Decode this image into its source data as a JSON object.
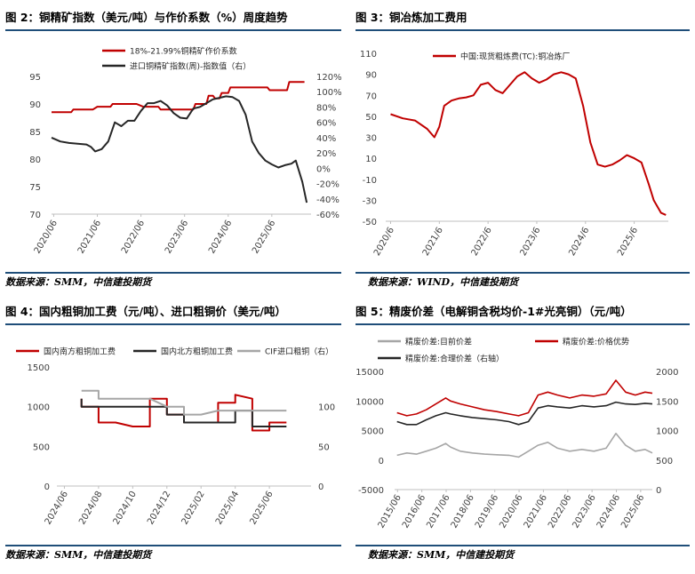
{
  "figures": {
    "fig2": {
      "title": "图 2：铜精矿指数（美元/吨）与作价系数（%）周度趋势"
    },
    "fig3": {
      "title": "图 3：铜冶炼加工费用"
    },
    "fig4": {
      "title": "图 4：国内粗铜加工费（元/吨）、进口粗铜价（美元/吨）"
    },
    "fig5": {
      "title": "图 5：精废价差（电解铜含税均价-1#光亮铜）（元/吨）"
    }
  },
  "sources": {
    "top_left": "数据来源：SMM，中信建投期货",
    "top_right": "数据来源：WIND，中信建投期货",
    "bottom_left": "数据来源：SMM，中信建投期货",
    "bottom_right": "数据来源：SMM，中信建投期货"
  },
  "chart_data": [
    {
      "id": "fig2",
      "type": "line",
      "x_ticks": [
        "2020/06",
        "2021/06",
        "2022/06",
        "2023/06",
        "2024/06",
        "2025/06"
      ],
      "y_left_ticks": [
        "70",
        "75",
        "80",
        "85",
        "90",
        "95"
      ],
      "y_right_ticks": [
        "-60%",
        "-40%",
        "-20%",
        "0%",
        "20%",
        "40%",
        "60%",
        "80%",
        "100%",
        "120%"
      ],
      "ylim_left": [
        70,
        95
      ],
      "ylim_right": [
        -60,
        120
      ],
      "legend_position": "top-center",
      "colors": {
        "s1": "#c00000",
        "s2": "#262626"
      },
      "series": [
        {
          "name": "18%-21.99%铜精矿作价系数",
          "axis": "left",
          "x": [
            2020.45,
            2020.9,
            2020.95,
            2021.4,
            2021.5,
            2021.8,
            2021.85,
            2022.4,
            2022.55,
            2022.9,
            2022.95,
            2023.7,
            2023.75,
            2024.0,
            2024.05,
            2024.15,
            2024.2,
            2024.3,
            2024.35,
            2024.5,
            2024.55,
            2025.4,
            2025.45,
            2025.85,
            2025.9,
            2026.15,
            2026.25
          ],
          "values": [
            88.5,
            88.5,
            89.0,
            89.0,
            89.5,
            89.5,
            90.0,
            90.0,
            89.5,
            89.5,
            89.0,
            89.0,
            90.0,
            90.0,
            91.5,
            91.5,
            91.0,
            91.0,
            92.0,
            92.0,
            93.0,
            93.0,
            92.5,
            92.5,
            94.0,
            94.0,
            94.0
          ]
        },
        {
          "name": "进口铜精矿指数(周)-指数值（右）",
          "axis": "right",
          "x": [
            2020.45,
            2020.65,
            2020.85,
            2021.05,
            2021.25,
            2021.35,
            2021.45,
            2021.6,
            2021.75,
            2021.9,
            2022.05,
            2022.2,
            2022.35,
            2022.5,
            2022.65,
            2022.8,
            2022.95,
            2023.1,
            2023.25,
            2023.4,
            2023.55,
            2023.7,
            2023.85,
            2024.0,
            2024.15,
            2024.3,
            2024.45,
            2024.6,
            2024.75,
            2024.9,
            2025.05,
            2025.2,
            2025.35,
            2025.5,
            2025.65,
            2025.8,
            2025.95,
            2026.05,
            2026.2,
            2026.3
          ],
          "values": [
            40,
            35,
            33,
            32,
            31,
            28,
            22,
            25,
            35,
            60,
            55,
            62,
            62,
            75,
            85,
            85,
            88,
            82,
            72,
            66,
            65,
            78,
            80,
            85,
            90,
            92,
            94,
            93,
            88,
            70,
            35,
            20,
            10,
            5,
            1,
            4,
            6,
            10,
            -18,
            -45
          ]
        }
      ]
    },
    {
      "id": "fig3",
      "type": "line",
      "x_ticks": [
        "2020/6",
        "2021/6",
        "2022/6",
        "2023/6",
        "2024/6",
        "2025/6"
      ],
      "y_ticks": [
        "-50",
        "-30",
        "-10",
        "10",
        "30",
        "50",
        "70",
        "90",
        "110"
      ],
      "ylim": [
        -50,
        110
      ],
      "legend_position": "top-left",
      "colors": {
        "s1": "#c00000"
      },
      "series": [
        {
          "name": "中国:现货粗炼费(TC):铜冶炼厂",
          "x": [
            2020.5,
            2020.75,
            2021.0,
            2021.25,
            2021.4,
            2021.5,
            2021.6,
            2021.75,
            2021.9,
            2022.05,
            2022.2,
            2022.35,
            2022.5,
            2022.65,
            2022.8,
            2022.95,
            2023.1,
            2023.25,
            2023.4,
            2023.55,
            2023.7,
            2023.85,
            2024.0,
            2024.15,
            2024.3,
            2024.45,
            2024.6,
            2024.75,
            2024.9,
            2025.05,
            2025.2,
            2025.35,
            2025.5,
            2025.65,
            2025.8,
            2025.9,
            2026.05,
            2026.15
          ],
          "values": [
            52,
            48,
            46,
            38,
            30,
            40,
            60,
            65,
            67,
            68,
            70,
            80,
            82,
            75,
            72,
            80,
            88,
            92,
            86,
            82,
            85,
            90,
            92,
            90,
            86,
            60,
            25,
            4,
            2,
            4,
            8,
            13,
            10,
            6,
            -15,
            -30,
            -42,
            -44
          ]
        }
      ]
    },
    {
      "id": "fig4",
      "type": "line",
      "x_ticks": [
        "2024/06",
        "2024/08",
        "2024/10",
        "2024/12",
        "2025/02",
        "2025/04",
        "2025/06"
      ],
      "y_left_ticks": [
        "0",
        "500",
        "1000",
        "1500"
      ],
      "y_right_ticks": [
        "0",
        "50",
        "100"
      ],
      "ylim_left": [
        0,
        1500
      ],
      "ylim_right": [
        0,
        150
      ],
      "legend_position": "top",
      "colors": {
        "s1": "#c00000",
        "s2": "#262626",
        "s3": "#a6a6a6"
      },
      "series": [
        {
          "name": "国内南方粗铜加工费",
          "axis": "left",
          "x": [
            "2024/07",
            "2024/07",
            "2024/08",
            "2024/08",
            "2024/09",
            "2024/10",
            "2024/11",
            "2024/11",
            "2024/12",
            "2024/12",
            "2025/01",
            "2025/01",
            "2025/02",
            "2025/03",
            "2025/03",
            "2025/04",
            "2025/04",
            "2025/05",
            "2025/05",
            "2025/06",
            "2025/06",
            "2025/07"
          ],
          "values": [
            1100,
            1000,
            1000,
            800,
            800,
            750,
            750,
            1100,
            1100,
            900,
            900,
            800,
            800,
            800,
            1050,
            1050,
            1150,
            1100,
            700,
            700,
            800,
            800
          ]
        },
        {
          "name": "国内北方粗铜加工费",
          "axis": "left",
          "x": [
            "2024/07",
            "2024/07",
            "2024/08",
            "2024/09",
            "2024/10",
            "2024/11",
            "2024/12",
            "2024/12",
            "2025/01",
            "2025/01",
            "2025/02",
            "2025/03",
            "2025/04",
            "2025/04",
            "2025/05",
            "2025/05",
            "2025/06",
            "2025/07"
          ],
          "values": [
            1100,
            1000,
            1000,
            1000,
            1000,
            1000,
            1000,
            900,
            900,
            800,
            800,
            800,
            800,
            950,
            950,
            750,
            750,
            750
          ]
        },
        {
          "name": "CIF进口粗铜（右）",
          "axis": "right",
          "x": [
            "2024/07",
            "2024/08",
            "2024/08",
            "2024/09",
            "2024/10",
            "2024/11",
            "2024/12",
            "2025/01",
            "2025/01",
            "2025/02",
            "2025/03",
            "2025/04",
            "2025/05",
            "2025/05",
            "2025/06",
            "2025/07"
          ],
          "values": [
            120,
            120,
            110,
            110,
            110,
            110,
            100,
            100,
            90,
            90,
            95,
            95,
            95,
            95,
            95,
            95
          ]
        }
      ]
    },
    {
      "id": "fig5",
      "type": "line",
      "x_ticks": [
        "2015/06",
        "2016/06",
        "2017/06",
        "2018/06",
        "2019/06",
        "2020/06",
        "2021/06",
        "2022/06",
        "2023/06",
        "2024/06",
        "2025/06"
      ],
      "y_left_ticks": [
        "-5000",
        "0",
        "5000",
        "10000",
        "15000"
      ],
      "y_right_ticks": [
        "0",
        "500",
        "1000",
        "1500",
        "2000"
      ],
      "ylim_left": [
        -5000,
        15000
      ],
      "ylim_right": [
        0,
        2000
      ],
      "legend_position": "top",
      "colors": {
        "s1": "#a6a6a6",
        "s2": "#c00000",
        "s3": "#262626"
      },
      "series": [
        {
          "name": "精废价差:目前价差",
          "axis": "left",
          "x": [
            2015.4,
            2015.8,
            2016.2,
            2016.6,
            2017.0,
            2017.4,
            2017.6,
            2018.0,
            2018.5,
            2019.0,
            2019.5,
            2020.0,
            2020.4,
            2020.8,
            2021.2,
            2021.6,
            2022.0,
            2022.5,
            2023.0,
            2023.5,
            2024.0,
            2024.4,
            2024.8,
            2025.2,
            2025.6,
            2025.9
          ],
          "values": [
            800,
            1200,
            1000,
            1500,
            2000,
            2800,
            2200,
            1500,
            1200,
            1000,
            900,
            800,
            500,
            1500,
            2500,
            3000,
            2000,
            1500,
            1800,
            1500,
            2000,
            4500,
            2500,
            1500,
            1800,
            1200
          ]
        },
        {
          "name": "精废价差:价格优势",
          "axis": "left",
          "x": [
            2015.4,
            2015.8,
            2016.2,
            2016.6,
            2017.0,
            2017.4,
            2017.6,
            2018.0,
            2018.5,
            2019.0,
            2019.5,
            2020.0,
            2020.4,
            2020.8,
            2021.2,
            2021.6,
            2022.0,
            2022.5,
            2023.0,
            2023.5,
            2024.0,
            2024.4,
            2024.8,
            2025.2,
            2025.6,
            2025.9
          ],
          "values": [
            8000,
            7500,
            7800,
            8500,
            9500,
            10500,
            10000,
            9500,
            9000,
            8500,
            8200,
            7800,
            7500,
            8000,
            11000,
            11500,
            11000,
            10500,
            11000,
            10800,
            11200,
            13500,
            11500,
            11000,
            11500,
            11300
          ]
        },
        {
          "name": "精废价差:合理价差（右轴）",
          "axis": "right",
          "x": [
            2015.4,
            2015.8,
            2016.2,
            2016.6,
            2017.0,
            2017.4,
            2017.6,
            2018.0,
            2018.5,
            2019.0,
            2019.5,
            2020.0,
            2020.4,
            2020.8,
            2021.2,
            2021.6,
            2022.0,
            2022.5,
            2023.0,
            2023.5,
            2024.0,
            2024.4,
            2024.8,
            2025.2,
            2025.6,
            2025.9
          ],
          "values": [
            1150,
            1100,
            1100,
            1180,
            1250,
            1300,
            1280,
            1250,
            1220,
            1200,
            1180,
            1150,
            1100,
            1150,
            1380,
            1420,
            1400,
            1380,
            1420,
            1400,
            1420,
            1480,
            1450,
            1440,
            1460,
            1450
          ]
        }
      ]
    }
  ]
}
